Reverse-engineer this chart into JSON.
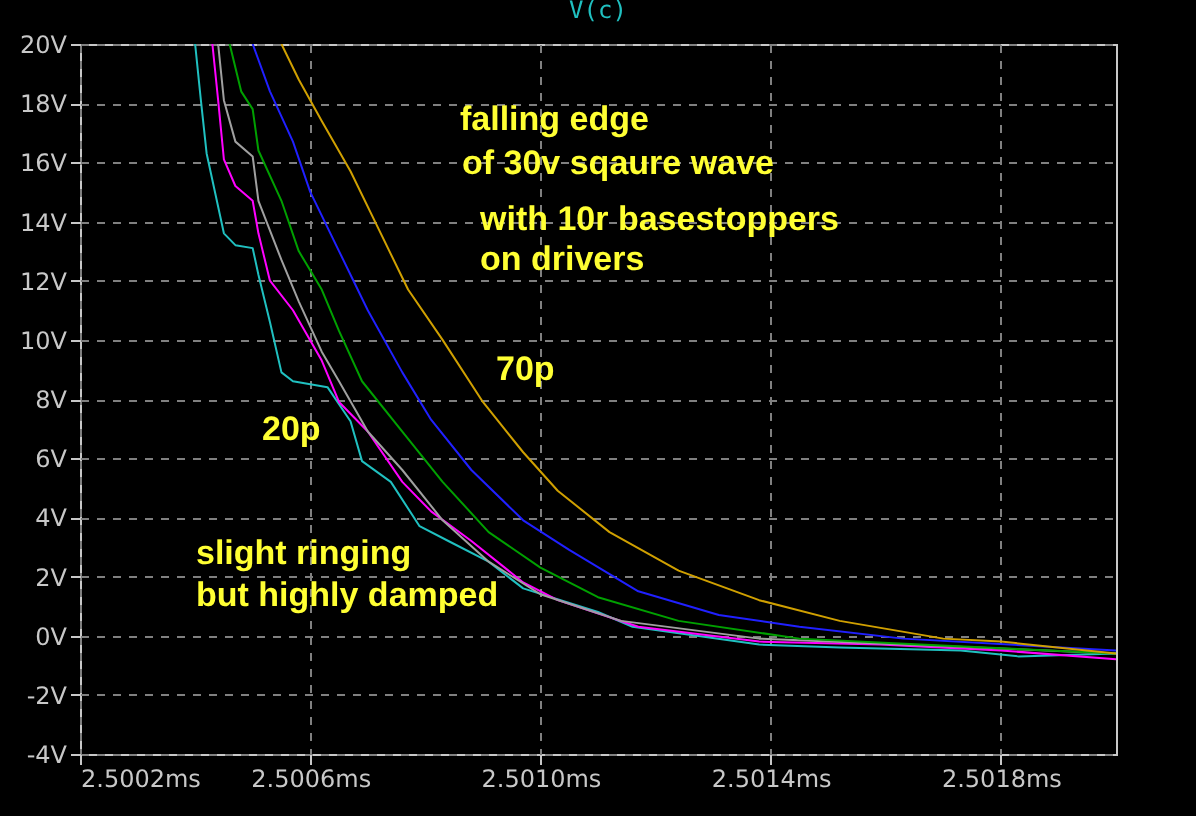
{
  "chart_data": {
    "type": "line",
    "title": "V(c)",
    "xlim": [
      2.5002,
      2.502
    ],
    "ylim": [
      -4,
      20
    ],
    "xticks": [
      {
        "value": 2.5002,
        "label": "2.5002ms"
      },
      {
        "value": 2.5006,
        "label": "2.5006ms"
      },
      {
        "value": 2.501,
        "label": "2.5010ms"
      },
      {
        "value": 2.5014,
        "label": "2.5014ms"
      },
      {
        "value": 2.5018,
        "label": "2.5018ms"
      }
    ],
    "yticks": [
      {
        "value": -4,
        "label": "-4V"
      },
      {
        "value": -2,
        "label": "-2V"
      },
      {
        "value": 0,
        "label": "0V"
      },
      {
        "value": 2,
        "label": "2V"
      },
      {
        "value": 4,
        "label": "4V"
      },
      {
        "value": 6,
        "label": "6V"
      },
      {
        "value": 8,
        "label": "8V"
      },
      {
        "value": 10,
        "label": "10V"
      },
      {
        "value": 12,
        "label": "12V"
      },
      {
        "value": 14,
        "label": "14V"
      },
      {
        "value": 16,
        "label": "16V"
      },
      {
        "value": 18,
        "label": "18V"
      },
      {
        "value": 20,
        "label": "20V"
      }
    ],
    "grid": true,
    "line_style": "solid",
    "series": [
      {
        "color": "#20c0c0",
        "x": [
          2.5004,
          2.50041,
          2.50042,
          2.50045,
          2.50047,
          2.5005,
          2.50051,
          2.50053,
          2.50055,
          2.50057,
          2.50063,
          2.50067,
          2.50069,
          2.50074,
          2.50079,
          2.50084,
          2.50091,
          2.50097,
          2.5011,
          2.50116,
          2.50138,
          2.50152,
          2.50173,
          2.50183,
          2.502
        ],
        "values": [
          20,
          18.1,
          16.3,
          13.6,
          13.2,
          13.1,
          12.2,
          10.6,
          8.9,
          8.6,
          8.4,
          7.25,
          5.9,
          5.2,
          3.7,
          3.2,
          2.5,
          1.6,
          0.8,
          0.3,
          -0.3,
          -0.4,
          -0.5,
          -0.7,
          -0.6
        ]
      },
      {
        "color": "#ff00ff",
        "x": [
          2.50043,
          2.50044,
          2.50045,
          2.50047,
          2.5005,
          2.50051,
          2.50053,
          2.50057,
          2.50062,
          2.50065,
          2.5007,
          2.50076,
          2.50081,
          2.50088,
          2.50097,
          2.50103,
          2.50117,
          2.50138,
          2.50159,
          2.5018,
          2.502
        ],
        "values": [
          20,
          18.1,
          16.1,
          15.2,
          14.7,
          13.6,
          12,
          11,
          9.3,
          7.9,
          6.9,
          5.2,
          4.2,
          3.2,
          1.8,
          1.2,
          0.3,
          -0.2,
          -0.3,
          -0.5,
          -0.8
        ]
      },
      {
        "color": "#a0a0a0",
        "x": [
          2.50044,
          2.50045,
          2.50047,
          2.5005,
          2.50051,
          2.50055,
          2.50058,
          2.50062,
          2.50065,
          2.5007,
          2.50076,
          2.50083,
          2.50091,
          2.501,
          2.50114,
          2.50138,
          2.50163,
          2.502
        ],
        "values": [
          20,
          18.1,
          16.7,
          16.2,
          14.7,
          12.7,
          11.3,
          9.6,
          8.6,
          6.9,
          5.6,
          3.9,
          2.5,
          1.4,
          0.5,
          -0.1,
          -0.3,
          -0.6
        ]
      },
      {
        "color": "#00a000",
        "x": [
          2.50046,
          2.50048,
          2.5005,
          2.50051,
          2.50055,
          2.50058,
          2.50062,
          2.50065,
          2.50069,
          2.50076,
          2.50083,
          2.50091,
          2.501,
          2.5011,
          2.50124,
          2.50145,
          2.50166,
          2.502
        ],
        "values": [
          20,
          18.4,
          17.8,
          16.4,
          14.7,
          13,
          11.7,
          10.3,
          8.6,
          6.9,
          5.2,
          3.5,
          2.3,
          1.3,
          0.5,
          -0.1,
          -0.3,
          -0.6
        ]
      },
      {
        "color": "#2020ff",
        "x": [
          2.5005,
          2.50053,
          2.50057,
          2.5006,
          2.50065,
          2.5007,
          2.50076,
          2.50081,
          2.50088,
          2.50097,
          2.50105,
          2.50117,
          2.50131,
          2.50145,
          2.50163,
          2.502
        ],
        "values": [
          20,
          18.4,
          16.7,
          15,
          13,
          11,
          8.9,
          7.3,
          5.6,
          3.9,
          2.9,
          1.5,
          0.7,
          0.3,
          -0.1,
          -0.5
        ]
      },
      {
        "color": "#d0a000",
        "x": [
          2.50055,
          2.50058,
          2.50062,
          2.50067,
          2.50072,
          2.50077,
          2.50083,
          2.5009,
          2.50097,
          2.50103,
          2.50112,
          2.50124,
          2.50138,
          2.50152,
          2.5017,
          2.5018,
          2.502
        ],
        "values": [
          20,
          18.8,
          17.4,
          15.7,
          13.7,
          11.7,
          10,
          7.9,
          6.2,
          4.9,
          3.5,
          2.2,
          1.2,
          0.5,
          -0.1,
          -0.2,
          -0.6
        ]
      }
    ],
    "annotations": [
      "falling edge",
      "of 30v sqaure wave",
      "with 10r basestoppers",
      "on drivers",
      "slight ringing",
      "but highly damped",
      "70p",
      "20p"
    ]
  }
}
